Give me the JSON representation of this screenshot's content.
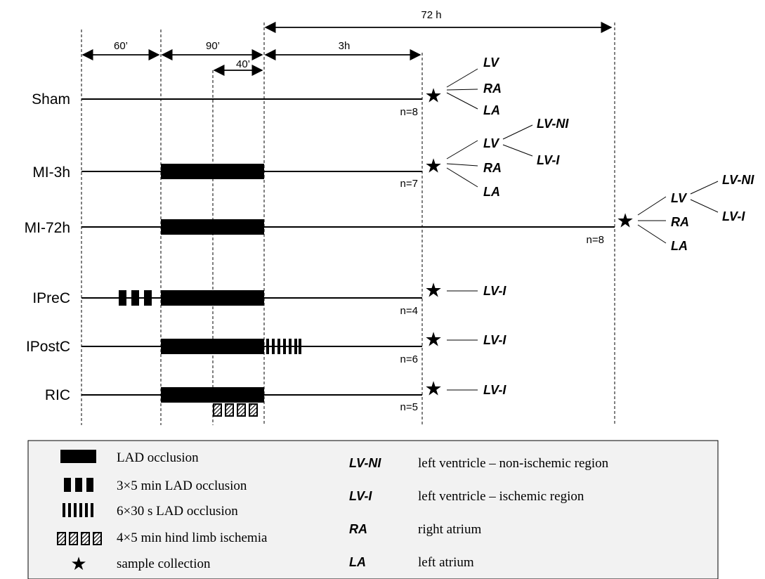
{
  "dimensions": {
    "t60": "60’",
    "t90": "90’",
    "t40": "40’",
    "t3h": "3h",
    "t72h": "72 h"
  },
  "groups": [
    {
      "label": "Sham",
      "n": "n=8"
    },
    {
      "label": "MI-3h",
      "n": "n=7"
    },
    {
      "label": "MI-72h",
      "n": "n=8"
    },
    {
      "label": "IPreC",
      "n": "n=4"
    },
    {
      "label": "IPostC",
      "n": "n=6"
    },
    {
      "label": "RIC",
      "n": "n=5"
    }
  ],
  "samples": {
    "sham": {
      "lv": "LV",
      "ra": "RA",
      "la": "LA"
    },
    "mi3h": {
      "lv": "LV",
      "lv_ni": "LV-NI",
      "lv_i": "LV-I",
      "ra": "RA",
      "la": "LA"
    },
    "mi72h": {
      "lv": "LV",
      "lv_ni": "LV-NI",
      "lv_i": "LV-I",
      "ra": "RA",
      "la": "LA"
    },
    "iprec": {
      "lv_i": "LV-I"
    },
    "ipostc": {
      "lv_i": "LV-I"
    },
    "ric": {
      "lv_i": "LV-I"
    }
  },
  "legend": {
    "symbols": [
      {
        "icon": "solid-bar",
        "text": "LAD occlusion"
      },
      {
        "icon": "three-blocks",
        "text": "3×5 min LAD occlusion"
      },
      {
        "icon": "six-stripes",
        "text": "6×30 s LAD occlusion"
      },
      {
        "icon": "hatched-boxes",
        "text": "4×5 min hind limb ischemia"
      },
      {
        "icon": "star",
        "text": "sample collection"
      }
    ],
    "abbreviations": [
      {
        "abbr": "LV-NI",
        "text": "left ventricle – non-ischemic region"
      },
      {
        "abbr": "LV-I",
        "text": "left ventricle – ischemic region"
      },
      {
        "abbr": "RA",
        "text": "right atrium"
      },
      {
        "abbr": "LA",
        "text": "left atrium"
      }
    ]
  }
}
